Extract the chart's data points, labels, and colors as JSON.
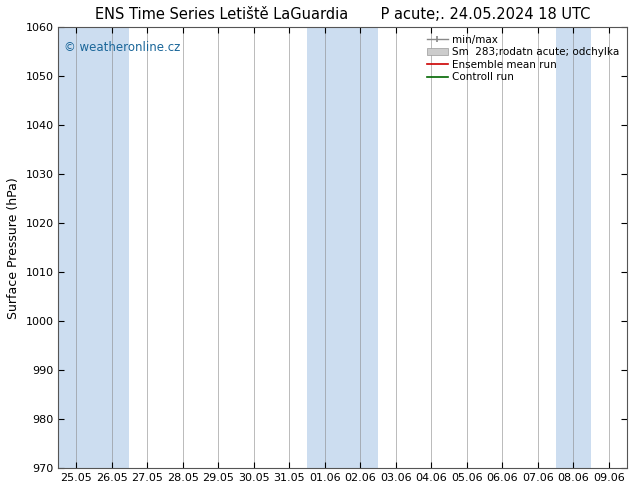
{
  "title_left": "ENS Time Series Letiště LaGuardia",
  "title_right": "P acute;. 24.05.2024 18 UTC",
  "ylabel": "Surface Pressure (hPa)",
  "ylim": [
    970,
    1060
  ],
  "yticks": [
    970,
    980,
    990,
    1000,
    1010,
    1020,
    1030,
    1040,
    1050,
    1060
  ],
  "x_labels": [
    "25.05",
    "26.05",
    "27.05",
    "28.05",
    "29.05",
    "30.05",
    "31.05",
    "01.06",
    "02.06",
    "03.06",
    "04.06",
    "05.06",
    "06.06",
    "07.06",
    "08.06",
    "09.06"
  ],
  "n_points": 16,
  "bg_color": "#ffffff",
  "plot_bg_color": "#ffffff",
  "shaded_cols": [
    0,
    1,
    7,
    8,
    14
  ],
  "shaded_color": "#ccddf0",
  "watermark": "© weatheronline.cz",
  "watermark_color": "#1a6699",
  "title_fontsize": 10.5,
  "axis_label_fontsize": 9,
  "tick_fontsize": 8,
  "legend_fontsize": 7.5
}
